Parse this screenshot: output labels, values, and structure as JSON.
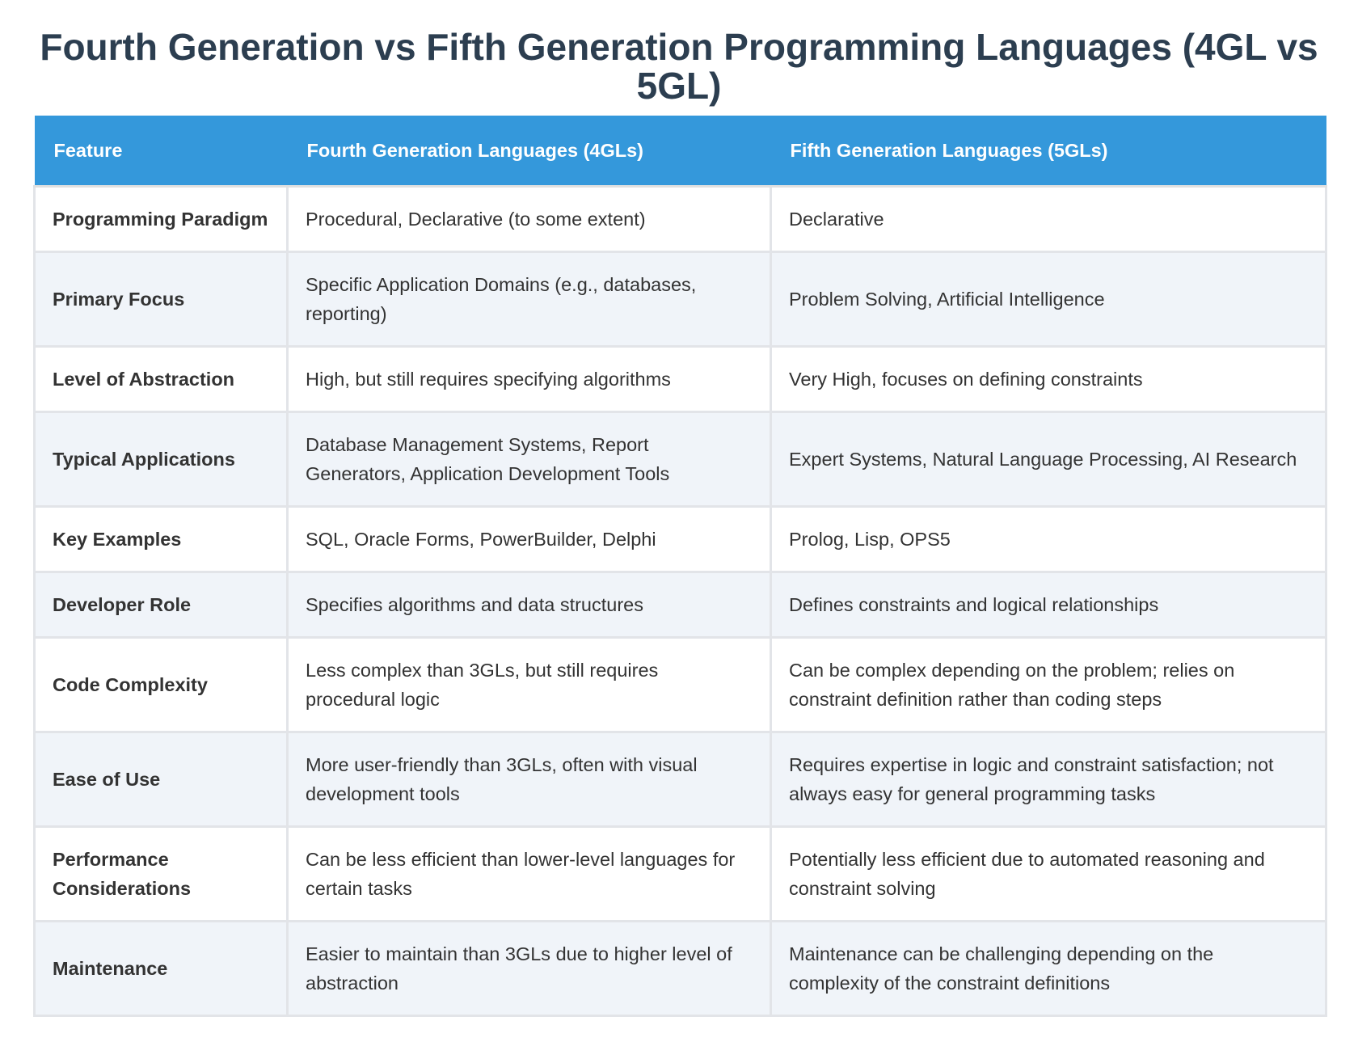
{
  "title": "Fourth Generation vs Fifth Generation Programming Languages (4GL vs 5GL)",
  "table": {
    "headers": [
      "Feature",
      "Fourth Generation Languages (4GLs)",
      "Fifth Generation Languages (5GLs)"
    ],
    "rows": [
      [
        "Programming Paradigm",
        "Procedural, Declarative (to some extent)",
        "Declarative"
      ],
      [
        "Primary Focus",
        "Specific Application Domains (e.g., databases, reporting)",
        "Problem Solving, Artificial Intelligence"
      ],
      [
        "Level of Abstraction",
        "High, but still requires specifying algorithms",
        "Very High, focuses on defining constraints"
      ],
      [
        "Typical Applications",
        "Database Management Systems, Report Generators, Application Development Tools",
        "Expert Systems, Natural Language Processing, AI Research"
      ],
      [
        "Key Examples",
        "SQL, Oracle Forms, PowerBuilder, Delphi",
        "Prolog, Lisp, OPS5"
      ],
      [
        "Developer Role",
        "Specifies algorithms and data structures",
        "Defines constraints and logical relationships"
      ],
      [
        "Code Complexity",
        "Less complex than 3GLs, but still requires procedural logic",
        "Can be complex depending on the problem; relies on constraint definition rather than coding steps"
      ],
      [
        "Ease of Use",
        "More user-friendly than 3GLs, often with visual development tools",
        "Requires expertise in logic and constraint satisfaction; not always easy for general programming tasks"
      ],
      [
        "Performance Considerations",
        "Can be less efficient than lower-level languages for certain tasks",
        "Potentially less efficient due to automated reasoning and constraint solving"
      ],
      [
        "Maintenance",
        "Easier to maintain than 3GLs due to higher level of abstraction",
        "Maintenance can be challenging depending on the complexity of the constraint definitions"
      ]
    ]
  }
}
